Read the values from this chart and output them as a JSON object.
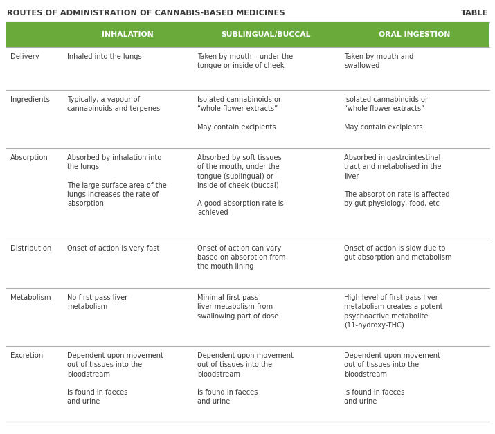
{
  "title": "ROUTES OF ADMINISTRATION OF CANNABIS-BASED MEDICINES",
  "title_right": "TABLE",
  "header_color": "#6aaa3a",
  "header_text_color": "#ffffff",
  "bg_color": "#ffffff",
  "leaf_color": "#ddeec8",
  "border_color": "#b0b0b0",
  "text_color": "#3a3a3a",
  "columns": [
    "",
    "INHALATION",
    "SUBLINGUAL/BUCCAL",
    "ORAL INGESTION"
  ],
  "rows": [
    {
      "label": "Delivery",
      "inhalation": "Inhaled into the lungs",
      "sublingual": "Taken by mouth – under the\ntongue or inside of cheek",
      "oral": "Taken by mouth and\nswallowed"
    },
    {
      "label": "Ingredients",
      "inhalation": "Typically, a vapour of\ncannabinoids and terpenes",
      "sublingual": "Isolated cannabinoids or\n“whole flower extracts”\n\nMay contain excipients",
      "oral": "Isolated cannabinoids or\n“whole flower extracts”\n\nMay contain excipients"
    },
    {
      "label": "Absorption",
      "inhalation": "Absorbed by inhalation into\nthe lungs\n\nThe large surface area of the\nlungs increases the rate of\nabsorption",
      "sublingual": "Absorbed by soft tissues\nof the mouth, under the\ntongue (sublingual) or\ninside of cheek (buccal)\n\nA good absorption rate is\nachieved",
      "oral": "Absorbed in gastrointestinal\ntract and metabolised in the\nliver\n\nThe absorption rate is affected\nby gut physiology, food, etc"
    },
    {
      "label": "Distribution",
      "inhalation": "Onset of action is very fast",
      "sublingual": "Onset of action can vary\nbased on absorption from\nthe mouth lining",
      "oral": "Onset of action is slow due to\ngut absorption and metabolism"
    },
    {
      "label": "Metabolism",
      "inhalation": "No first-pass liver\nmetabolism",
      "sublingual": "Minimal first-pass\nliver metabolism from\nswallowing part of dose",
      "oral": "High level of first-pass liver\nmetabolism creates a potent\npsychoactive metabolite\n(11-hydroxy-THC)"
    },
    {
      "label": "Excretion",
      "inhalation": "Dependent upon movement\nout of tissues into the\nbloodstream\n\nIs found in faeces\nand urine",
      "sublingual": "Dependent upon movement\nout of tissues into the\nbloodstream\n\nIs found in faeces\nand urine",
      "oral": "Dependent upon movement\nout of tissues into the\nbloodstream\n\nIs found in faeces\nand urine"
    }
  ],
  "figsize": [
    7.15,
    6.27
  ],
  "dpi": 100,
  "row_height_weights": [
    1.0,
    1.35,
    2.1,
    1.15,
    1.35,
    1.75
  ]
}
